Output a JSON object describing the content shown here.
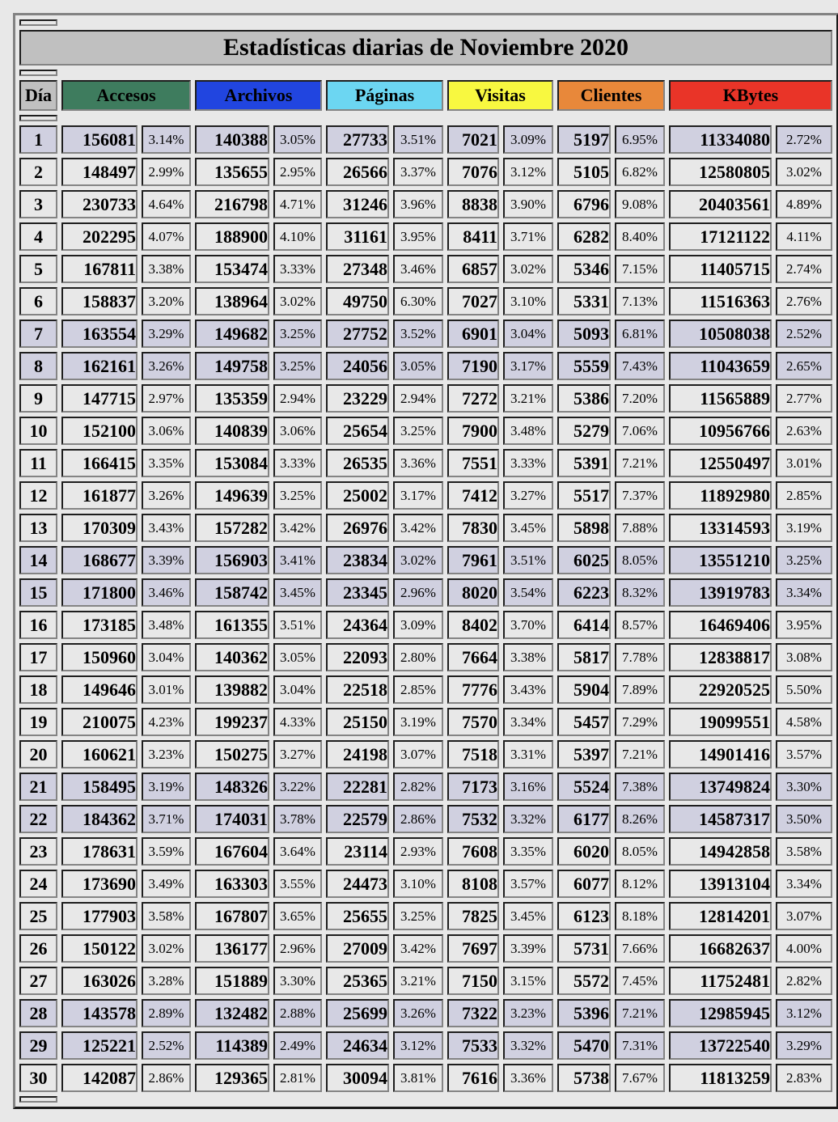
{
  "table": {
    "title": "Estadísticas diarias de Noviembre 2020",
    "day_header": "Día",
    "title_bg": "#C0C0C0",
    "weekend_bg": "#D0D0E0",
    "weekday_bg": "#E8E8E8",
    "columns": [
      {
        "label": "Accesos",
        "color": "#3E7C5E"
      },
      {
        "label": "Archivos",
        "color": "#2145E0"
      },
      {
        "label": "Páginas",
        "color": "#6CD6F2"
      },
      {
        "label": "Visitas",
        "color": "#F8F840"
      },
      {
        "label": "Clientes",
        "color": "#E8883A"
      },
      {
        "label": "KBytes",
        "color": "#E93428"
      }
    ],
    "rows": [
      {
        "day": "1",
        "weekend": true,
        "cells": [
          "156081",
          "3.14%",
          "140388",
          "3.05%",
          "27733",
          "3.51%",
          "7021",
          "3.09%",
          "5197",
          "6.95%",
          "11334080",
          "2.72%"
        ]
      },
      {
        "day": "2",
        "weekend": false,
        "cells": [
          "148497",
          "2.99%",
          "135655",
          "2.95%",
          "26566",
          "3.37%",
          "7076",
          "3.12%",
          "5105",
          "6.82%",
          "12580805",
          "3.02%"
        ]
      },
      {
        "day": "3",
        "weekend": false,
        "cells": [
          "230733",
          "4.64%",
          "216798",
          "4.71%",
          "31246",
          "3.96%",
          "8838",
          "3.90%",
          "6796",
          "9.08%",
          "20403561",
          "4.89%"
        ]
      },
      {
        "day": "4",
        "weekend": false,
        "cells": [
          "202295",
          "4.07%",
          "188900",
          "4.10%",
          "31161",
          "3.95%",
          "8411",
          "3.71%",
          "6282",
          "8.40%",
          "17121122",
          "4.11%"
        ]
      },
      {
        "day": "5",
        "weekend": false,
        "cells": [
          "167811",
          "3.38%",
          "153474",
          "3.33%",
          "27348",
          "3.46%",
          "6857",
          "3.02%",
          "5346",
          "7.15%",
          "11405715",
          "2.74%"
        ]
      },
      {
        "day": "6",
        "weekend": false,
        "cells": [
          "158837",
          "3.20%",
          "138964",
          "3.02%",
          "49750",
          "6.30%",
          "7027",
          "3.10%",
          "5331",
          "7.13%",
          "11516363",
          "2.76%"
        ]
      },
      {
        "day": "7",
        "weekend": true,
        "cells": [
          "163554",
          "3.29%",
          "149682",
          "3.25%",
          "27752",
          "3.52%",
          "6901",
          "3.04%",
          "5093",
          "6.81%",
          "10508038",
          "2.52%"
        ]
      },
      {
        "day": "8",
        "weekend": true,
        "cells": [
          "162161",
          "3.26%",
          "149758",
          "3.25%",
          "24056",
          "3.05%",
          "7190",
          "3.17%",
          "5559",
          "7.43%",
          "11043659",
          "2.65%"
        ]
      },
      {
        "day": "9",
        "weekend": false,
        "cells": [
          "147715",
          "2.97%",
          "135359",
          "2.94%",
          "23229",
          "2.94%",
          "7272",
          "3.21%",
          "5386",
          "7.20%",
          "11565889",
          "2.77%"
        ]
      },
      {
        "day": "10",
        "weekend": false,
        "cells": [
          "152100",
          "3.06%",
          "140839",
          "3.06%",
          "25654",
          "3.25%",
          "7900",
          "3.48%",
          "5279",
          "7.06%",
          "10956766",
          "2.63%"
        ]
      },
      {
        "day": "11",
        "weekend": false,
        "cells": [
          "166415",
          "3.35%",
          "153084",
          "3.33%",
          "26535",
          "3.36%",
          "7551",
          "3.33%",
          "5391",
          "7.21%",
          "12550497",
          "3.01%"
        ]
      },
      {
        "day": "12",
        "weekend": false,
        "cells": [
          "161877",
          "3.26%",
          "149639",
          "3.25%",
          "25002",
          "3.17%",
          "7412",
          "3.27%",
          "5517",
          "7.37%",
          "11892980",
          "2.85%"
        ]
      },
      {
        "day": "13",
        "weekend": false,
        "cells": [
          "170309",
          "3.43%",
          "157282",
          "3.42%",
          "26976",
          "3.42%",
          "7830",
          "3.45%",
          "5898",
          "7.88%",
          "13314593",
          "3.19%"
        ]
      },
      {
        "day": "14",
        "weekend": true,
        "cells": [
          "168677",
          "3.39%",
          "156903",
          "3.41%",
          "23834",
          "3.02%",
          "7961",
          "3.51%",
          "6025",
          "8.05%",
          "13551210",
          "3.25%"
        ]
      },
      {
        "day": "15",
        "weekend": true,
        "cells": [
          "171800",
          "3.46%",
          "158742",
          "3.45%",
          "23345",
          "2.96%",
          "8020",
          "3.54%",
          "6223",
          "8.32%",
          "13919783",
          "3.34%"
        ]
      },
      {
        "day": "16",
        "weekend": false,
        "cells": [
          "173185",
          "3.48%",
          "161355",
          "3.51%",
          "24364",
          "3.09%",
          "8402",
          "3.70%",
          "6414",
          "8.57%",
          "16469406",
          "3.95%"
        ]
      },
      {
        "day": "17",
        "weekend": false,
        "cells": [
          "150960",
          "3.04%",
          "140362",
          "3.05%",
          "22093",
          "2.80%",
          "7664",
          "3.38%",
          "5817",
          "7.78%",
          "12838817",
          "3.08%"
        ]
      },
      {
        "day": "18",
        "weekend": false,
        "cells": [
          "149646",
          "3.01%",
          "139882",
          "3.04%",
          "22518",
          "2.85%",
          "7776",
          "3.43%",
          "5904",
          "7.89%",
          "22920525",
          "5.50%"
        ]
      },
      {
        "day": "19",
        "weekend": false,
        "cells": [
          "210075",
          "4.23%",
          "199237",
          "4.33%",
          "25150",
          "3.19%",
          "7570",
          "3.34%",
          "5457",
          "7.29%",
          "19099551",
          "4.58%"
        ]
      },
      {
        "day": "20",
        "weekend": false,
        "cells": [
          "160621",
          "3.23%",
          "150275",
          "3.27%",
          "24198",
          "3.07%",
          "7518",
          "3.31%",
          "5397",
          "7.21%",
          "14901416",
          "3.57%"
        ]
      },
      {
        "day": "21",
        "weekend": true,
        "cells": [
          "158495",
          "3.19%",
          "148326",
          "3.22%",
          "22281",
          "2.82%",
          "7173",
          "3.16%",
          "5524",
          "7.38%",
          "13749824",
          "3.30%"
        ]
      },
      {
        "day": "22",
        "weekend": true,
        "cells": [
          "184362",
          "3.71%",
          "174031",
          "3.78%",
          "22579",
          "2.86%",
          "7532",
          "3.32%",
          "6177",
          "8.26%",
          "14587317",
          "3.50%"
        ]
      },
      {
        "day": "23",
        "weekend": false,
        "cells": [
          "178631",
          "3.59%",
          "167604",
          "3.64%",
          "23114",
          "2.93%",
          "7608",
          "3.35%",
          "6020",
          "8.05%",
          "14942858",
          "3.58%"
        ]
      },
      {
        "day": "24",
        "weekend": false,
        "cells": [
          "173690",
          "3.49%",
          "163303",
          "3.55%",
          "24473",
          "3.10%",
          "8108",
          "3.57%",
          "6077",
          "8.12%",
          "13913104",
          "3.34%"
        ]
      },
      {
        "day": "25",
        "weekend": false,
        "cells": [
          "177903",
          "3.58%",
          "167807",
          "3.65%",
          "25655",
          "3.25%",
          "7825",
          "3.45%",
          "6123",
          "8.18%",
          "12814201",
          "3.07%"
        ]
      },
      {
        "day": "26",
        "weekend": false,
        "cells": [
          "150122",
          "3.02%",
          "136177",
          "2.96%",
          "27009",
          "3.42%",
          "7697",
          "3.39%",
          "5731",
          "7.66%",
          "16682637",
          "4.00%"
        ]
      },
      {
        "day": "27",
        "weekend": false,
        "cells": [
          "163026",
          "3.28%",
          "151889",
          "3.30%",
          "25365",
          "3.21%",
          "7150",
          "3.15%",
          "5572",
          "7.45%",
          "11752481",
          "2.82%"
        ]
      },
      {
        "day": "28",
        "weekend": true,
        "cells": [
          "143578",
          "2.89%",
          "132482",
          "2.88%",
          "25699",
          "3.26%",
          "7322",
          "3.23%",
          "5396",
          "7.21%",
          "12985945",
          "3.12%"
        ]
      },
      {
        "day": "29",
        "weekend": true,
        "cells": [
          "125221",
          "2.52%",
          "114389",
          "2.49%",
          "24634",
          "3.12%",
          "7533",
          "3.32%",
          "5470",
          "7.31%",
          "13722540",
          "3.29%"
        ]
      },
      {
        "day": "30",
        "weekend": false,
        "cells": [
          "142087",
          "2.86%",
          "129365",
          "2.81%",
          "30094",
          "3.81%",
          "7616",
          "3.36%",
          "5738",
          "7.67%",
          "11813259",
          "2.83%"
        ]
      }
    ]
  }
}
